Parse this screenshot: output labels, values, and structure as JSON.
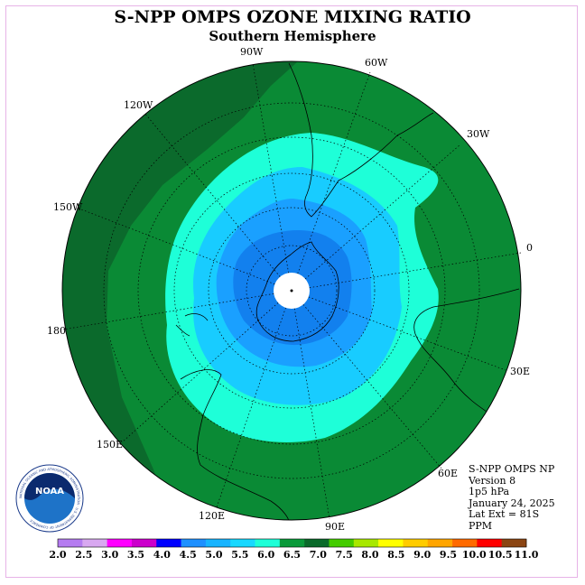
{
  "header": {
    "title": "S-NPP OMPS OZONE MIXING RATIO",
    "subtitle": "Southern Hemisphere"
  },
  "longitude_labels": [
    "90W",
    "60W",
    "30W",
    "0",
    "30E",
    "60E",
    "90E",
    "120E",
    "150E",
    "180",
    "150W",
    "120W"
  ],
  "info": {
    "instrument": "S-NPP OMPS NP",
    "version": "Version 8",
    "pressure": "1p5 hPa",
    "date": "January 24, 2025",
    "lat_ext": "Lat Ext = 81S",
    "units": "PPM"
  },
  "logo": {
    "text": "NOAA",
    "ring_text": "NATIONAL OCEANIC AND ATMOSPHERIC ADMINISTRATION · U.S. DEPARTMENT OF COMMERCE"
  },
  "colorbar": {
    "ticks": [
      "2.0",
      "2.5",
      "3.0",
      "3.5",
      "4.0",
      "4.5",
      "5.0",
      "5.5",
      "6.0",
      "6.5",
      "7.0",
      "7.5",
      "8.0",
      "8.5",
      "9.0",
      "9.5",
      "10.0",
      "10.5",
      "11.0"
    ],
    "colors": [
      "#b57cf0",
      "#d8a8f0",
      "#ff00ff",
      "#cc00cc",
      "#0000ff",
      "#1e90ff",
      "#18b4ff",
      "#18d8ff",
      "#1effd8",
      "#0a9a3a",
      "#0a6a2a",
      "#44cc00",
      "#a8e800",
      "#ffff00",
      "#ffcc00",
      "#ffa500",
      "#ff6a00",
      "#ff0000",
      "#8b4513"
    ]
  },
  "colors": {
    "dark_green": "#0b6a2c",
    "green": "#0a8a35",
    "aquamarine": "#1effd8",
    "light_blue": "#18ccff",
    "blue": "#1aa0ff",
    "deep_blue": "#1280ee",
    "coast": "#000000"
  }
}
